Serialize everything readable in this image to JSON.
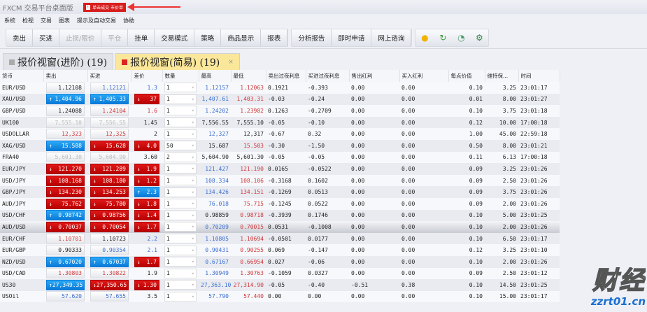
{
  "window": {
    "title": "FXCM 交易平台桌面版",
    "alert_badge": "!",
    "alert_text": "单击成交 市价单"
  },
  "menu": [
    "系统",
    "检视",
    "交易",
    "图表",
    "提示及自动交易",
    "协助"
  ],
  "toolbar": {
    "group1": [
      {
        "label": "卖出",
        "enabled": true
      },
      {
        "label": "买进",
        "enabled": true
      },
      {
        "label": "止损/限价",
        "enabled": false
      },
      {
        "label": "平仓",
        "enabled": false
      },
      {
        "label": "挂单",
        "enabled": true
      },
      {
        "label": "交易模式",
        "enabled": true
      },
      {
        "label": "策略",
        "enabled": true
      },
      {
        "label": "商品显示",
        "enabled": true
      },
      {
        "label": "报表",
        "enabled": true
      }
    ],
    "group2": [
      "分析报告",
      "即时申请",
      "网上谘询"
    ],
    "icons": [
      "clock-icon",
      "refresh-icon",
      "history-icon",
      "settings-icon"
    ]
  },
  "tabs": [
    {
      "label": "报价视窗(进阶) (19)",
      "active": false
    },
    {
      "label": "报价视窗(简易) (19)",
      "active": true,
      "close": "×"
    }
  ],
  "table": {
    "headers": [
      "货币",
      "卖出",
      "买进",
      "差价",
      "数量",
      "最高",
      "最低",
      "卖出过夜利息",
      "买进过夜利息",
      "售出红利",
      "买入红利",
      "每点价值",
      "维持保...",
      "时间"
    ],
    "colors": {
      "up": "#0a7ad8",
      "down": "#c80000",
      "blue": "#3b6fd0",
      "red": "#d03838"
    },
    "rows": [
      [
        "EUR/USD",
        [
          "1.12108",
          "black"
        ],
        [
          "1.12121",
          "blue"
        ],
        [
          "1.3",
          "blue"
        ],
        "1",
        [
          "1.12157",
          "blue"
        ],
        [
          "1.12063",
          "red"
        ],
        "0.1921",
        "-0.393",
        "0.00",
        "0.00",
        "0.10",
        "3.25",
        "23:01:17"
      ],
      [
        "XAU/USD",
        [
          "1,404.96",
          "up"
        ],
        [
          "1,405.33",
          "up"
        ],
        [
          "37",
          "down"
        ],
        "1",
        [
          "1,407.61",
          "blue"
        ],
        [
          "1,403.31",
          "red"
        ],
        "-0.03",
        "-0.24",
        "0.00",
        "0.00",
        "0.01",
        "8.00",
        "23:01:27"
      ],
      [
        "GBP/USD",
        [
          "1.24088",
          "black"
        ],
        [
          "1.24104",
          "red"
        ],
        [
          "1.6",
          "red"
        ],
        "1",
        [
          "1.24202",
          "blue"
        ],
        [
          "1.23982",
          "red"
        ],
        "0.1263",
        "-0.2709",
        "0.00",
        "0.00",
        "0.10",
        "3.75",
        "23:01:18"
      ],
      [
        "UK100",
        [
          "7,555.10",
          "gray"
        ],
        [
          "7,556.55",
          "gray"
        ],
        [
          "1.45",
          "black"
        ],
        "1",
        [
          "7,556.55",
          "black"
        ],
        [
          "7,555.10",
          "black"
        ],
        "-0.05",
        "-0.10",
        "0.00",
        "0.00",
        "0.12",
        "10.00",
        "17:00:18"
      ],
      [
        "USDOLLAR",
        [
          "12,323",
          "red"
        ],
        [
          "12,325",
          "red"
        ],
        [
          "2",
          "black"
        ],
        "1",
        [
          "12,327",
          "blue"
        ],
        [
          "12,317",
          "black"
        ],
        "-0.67",
        "0.32",
        "0.00",
        "0.00",
        "1.00",
        "45.00",
        "22:59:18"
      ],
      [
        "XAG/USD",
        [
          "15.588",
          "up"
        ],
        [
          "15.628",
          "down"
        ],
        [
          "4.0",
          "down"
        ],
        "50",
        [
          "15.687",
          "black"
        ],
        [
          "15.503",
          "red"
        ],
        "-0.30",
        "-1.50",
        "0.00",
        "0.00",
        "0.50",
        "8.00",
        "23:01:21"
      ],
      [
        "FRA40",
        [
          "5,601.30",
          "gray"
        ],
        [
          "5,604.90",
          "gray"
        ],
        [
          "3.60",
          "black"
        ],
        "2",
        [
          "5,604.90",
          "black"
        ],
        [
          "5,601.30",
          "black"
        ],
        "-0.05",
        "-0.05",
        "0.00",
        "0.00",
        "0.11",
        "6.13",
        "17:00:18"
      ],
      [
        "EUR/JPY",
        [
          "121.270",
          "down"
        ],
        [
          "121.289",
          "down"
        ],
        [
          "1.9",
          "down"
        ],
        "1",
        [
          "121.427",
          "blue"
        ],
        [
          "121.190",
          "red"
        ],
        "0.0165",
        "-0.0522",
        "0.00",
        "0.00",
        "0.09",
        "3.25",
        "23:01:26"
      ],
      [
        "USD/JPY",
        [
          "108.168",
          "down"
        ],
        [
          "108.180",
          "down"
        ],
        [
          "1.2",
          "down"
        ],
        "1",
        [
          "108.334",
          "blue"
        ],
        [
          "108.106",
          "red"
        ],
        "-0.3168",
        "0.1602",
        "0.00",
        "0.00",
        "0.09",
        "2.50",
        "23:01:26"
      ],
      [
        "GBP/JPY",
        [
          "134.230",
          "down"
        ],
        [
          "134.253",
          "down"
        ],
        [
          "2.3",
          "up"
        ],
        "1",
        [
          "134.426",
          "blue"
        ],
        [
          "134.151",
          "red"
        ],
        "-0.1269",
        "0.0513",
        "0.00",
        "0.00",
        "0.09",
        "3.75",
        "23:01:26"
      ],
      [
        "AUD/JPY",
        [
          "75.762",
          "down"
        ],
        [
          "75.780",
          "down"
        ],
        [
          "1.8",
          "down"
        ],
        "1",
        [
          "76.018",
          "blue"
        ],
        [
          "75.715",
          "red"
        ],
        "-0.1245",
        "0.0522",
        "0.00",
        "0.00",
        "0.09",
        "2.00",
        "23:01:26"
      ],
      [
        "USD/CHF",
        [
          "0.98742",
          "up"
        ],
        [
          "0.98756",
          "down"
        ],
        [
          "1.4",
          "down"
        ],
        "1",
        [
          "0.98859",
          "black"
        ],
        [
          "0.98718",
          "red"
        ],
        "-0.3939",
        "0.1746",
        "0.00",
        "0.00",
        "0.10",
        "5.00",
        "23:01:25"
      ],
      [
        "AUD/USD",
        [
          "0.70037",
          "down"
        ],
        [
          "0.70054",
          "down"
        ],
        [
          "1.7",
          "down"
        ],
        "1",
        [
          "0.70209",
          "blue"
        ],
        [
          "0.70015",
          "red"
        ],
        "0.0531",
        "-0.1008",
        "0.00",
        "0.00",
        "0.10",
        "2.00",
        "23:01:26"
      ],
      [
        "EUR/CHF",
        [
          "1.10701",
          "red"
        ],
        [
          "1.10723",
          "black"
        ],
        [
          "2.2",
          "blue"
        ],
        "1",
        [
          "1.10805",
          "blue"
        ],
        [
          "1.10694",
          "red"
        ],
        "-0.0501",
        "0.0177",
        "0.00",
        "0.00",
        "0.10",
        "6.50",
        "23:01:17"
      ],
      [
        "EUR/GBP",
        [
          "0.90333",
          "black"
        ],
        [
          "0.90354",
          "blue"
        ],
        [
          "2.1",
          "blue"
        ],
        "1",
        [
          "0.90431",
          "blue"
        ],
        [
          "0.90255",
          "red"
        ],
        "0.069",
        "-0.147",
        "0.00",
        "0.00",
        "0.12",
        "3.25",
        "23:01:10"
      ],
      [
        "NZD/USD",
        [
          "0.67020",
          "up"
        ],
        [
          "0.67037",
          "up"
        ],
        [
          "1.7",
          "down"
        ],
        "1",
        [
          "0.67167",
          "blue"
        ],
        [
          "0.66954",
          "red"
        ],
        "0.027",
        "-0.06",
        "0.00",
        "0.00",
        "0.10",
        "2.00",
        "23:01:26"
      ],
      [
        "USD/CAD",
        [
          "1.30803",
          "red"
        ],
        [
          "1.30822",
          "red"
        ],
        [
          "1.9",
          "black"
        ],
        "1",
        [
          "1.30949",
          "blue"
        ],
        [
          "1.30763",
          "red"
        ],
        "-0.1059",
        "0.0327",
        "0.00",
        "0.00",
        "0.09",
        "2.50",
        "23:01:12"
      ],
      [
        "US30",
        [
          "27,349.35",
          "up"
        ],
        [
          "27,350.65",
          "down"
        ],
        [
          "1.30",
          "down"
        ],
        "1",
        [
          "27,363.10",
          "blue"
        ],
        [
          "27,314.90",
          "red"
        ],
        "-0.05",
        "-0.40",
        "-0.51",
        "0.38",
        "0.10",
        "14.50",
        "23:01:25"
      ],
      [
        "USOil",
        [
          "57.620",
          "blue"
        ],
        [
          "57.655",
          "blue"
        ],
        [
          "3.5",
          "black"
        ],
        "1",
        [
          "57.790",
          "blue"
        ],
        [
          "57.440",
          "red"
        ],
        "0.00",
        "0.00",
        "0.00",
        "0.00",
        "0.10",
        "15.00",
        "23:01:17"
      ]
    ],
    "selected_row": 12
  },
  "watermark": {
    "logo": "汇通财经",
    "url": "zzrt01.cn"
  }
}
